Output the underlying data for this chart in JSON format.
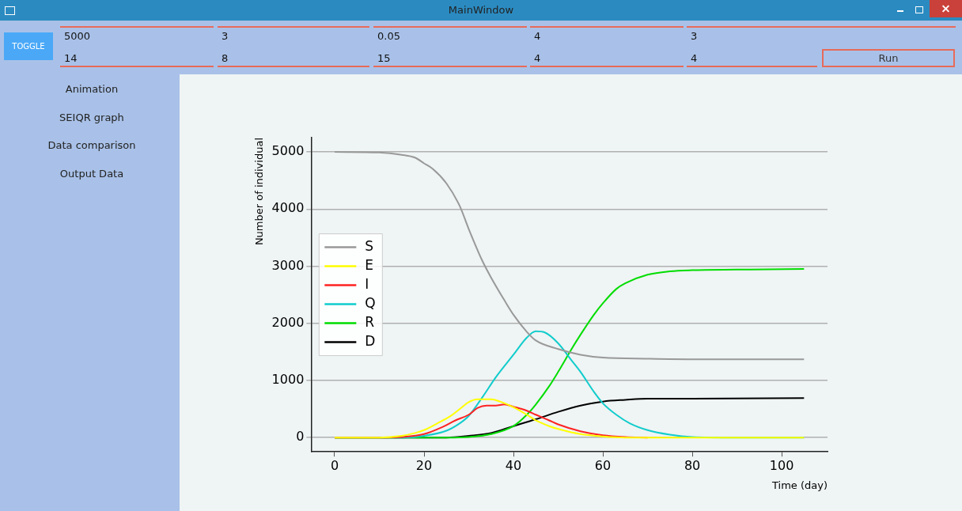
{
  "chart_data": {
    "type": "line",
    "xlabel": "Time (day)",
    "ylabel": "Number of individual",
    "xlim": [
      -5.25,
      110.25
    ],
    "xticks": [
      0,
      20,
      40,
      60,
      80,
      100
    ],
    "ylim": [
      -250,
      5250
    ],
    "yticks": [
      0,
      1000,
      2000,
      3000,
      4000,
      5000
    ],
    "grid": "y",
    "legend": "center left",
    "marker": "none",
    "line_style": "solid",
    "annotations": [
      "MainWindow",
      "TOGGLE",
      "5000",
      "3",
      "0.05",
      "4",
      "3",
      "14",
      "8",
      "15",
      "4",
      "4",
      "Run",
      "Animation",
      "SEIQR graph",
      "Data comparison",
      "Output Data"
    ],
    "series": [
      {
        "name": "S",
        "color": "#999999",
        "x": [
          0,
          10,
          15,
          18,
          20,
          22,
          25,
          28,
          30,
          33,
          35,
          38,
          40,
          43,
          45,
          50,
          55,
          60,
          70,
          80,
          105
        ],
        "values": [
          5000,
          4990,
          4950,
          4900,
          4800,
          4700,
          4450,
          4050,
          3650,
          3100,
          2800,
          2400,
          2150,
          1850,
          1700,
          1550,
          1450,
          1400,
          1380,
          1370,
          1370
        ]
      },
      {
        "name": "E",
        "color": "#ffff00",
        "x": [
          0,
          10,
          15,
          18,
          20,
          23,
          26,
          28,
          30,
          32,
          35,
          37,
          40,
          43,
          45,
          48,
          50,
          55,
          60,
          65,
          70,
          105
        ],
        "values": [
          0,
          0,
          30,
          80,
          130,
          250,
          380,
          500,
          620,
          670,
          670,
          630,
          530,
          400,
          300,
          200,
          150,
          60,
          20,
          0,
          0,
          0
        ]
      },
      {
        "name": "I",
        "color": "#ff2222",
        "x": [
          0,
          10,
          15,
          20,
          24,
          27,
          30,
          32,
          34,
          36,
          38,
          40,
          43,
          45,
          48,
          50,
          55,
          60,
          65,
          70
        ],
        "values": [
          0,
          0,
          10,
          60,
          180,
          300,
          400,
          520,
          560,
          560,
          580,
          540,
          470,
          400,
          300,
          230,
          110,
          40,
          10,
          0
        ]
      },
      {
        "name": "Q",
        "color": "#11cccc",
        "x": [
          0,
          15,
          20,
          25,
          28,
          30,
          33,
          36,
          40,
          43,
          45,
          47,
          50,
          53,
          55,
          58,
          60,
          63,
          66,
          70,
          75,
          80,
          90,
          105
        ],
        "values": [
          0,
          0,
          30,
          120,
          250,
          380,
          700,
          1050,
          1450,
          1750,
          1860,
          1840,
          1650,
          1350,
          1150,
          800,
          600,
          400,
          250,
          130,
          50,
          10,
          0,
          0
        ]
      },
      {
        "name": "R",
        "color": "#00dd00",
        "x": [
          0,
          25,
          30,
          35,
          40,
          43,
          45,
          48,
          50,
          53,
          55,
          58,
          60,
          63,
          65,
          70,
          75,
          80,
          90,
          105
        ],
        "values": [
          0,
          0,
          10,
          60,
          200,
          400,
          580,
          900,
          1150,
          1550,
          1800,
          2150,
          2350,
          2600,
          2700,
          2850,
          2910,
          2930,
          2940,
          2950
        ]
      },
      {
        "name": "D",
        "color": "#000000",
        "x": [
          0,
          20,
          25,
          30,
          35,
          40,
          45,
          50,
          55,
          60,
          65,
          70,
          80,
          105
        ],
        "values": [
          0,
          0,
          0,
          30,
          80,
          200,
          320,
          450,
          560,
          630,
          660,
          680,
          680,
          690
        ]
      }
    ]
  }
}
